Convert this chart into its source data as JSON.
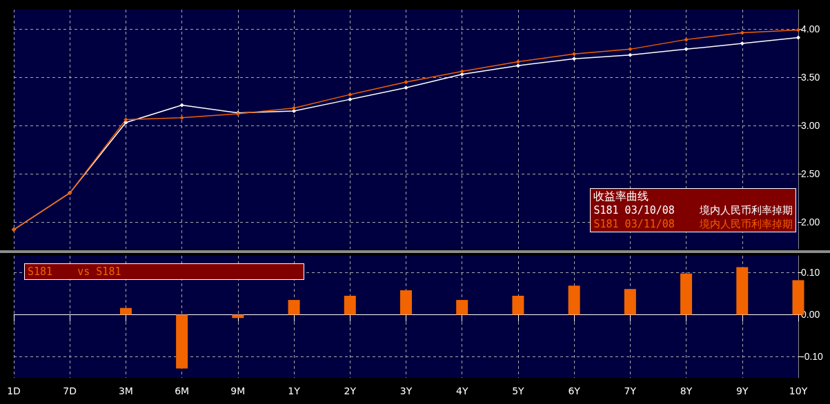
{
  "chart_data": [
    {
      "type": "line",
      "categories": [
        null,
        null,
        null,
        null,
        null,
        null,
        null,
        null,
        null,
        null,
        null,
        null,
        null,
        null,
        null
      ],
      "series": [
        {
          "name": "S181 03/10/08    境内人民币利率掉期",
          "color": "#ffffff",
          "values": [
            1.92,
            2.3,
            3.03,
            3.21,
            3.13,
            3.15,
            3.27,
            3.39,
            3.53,
            3.62,
            3.69,
            3.73,
            3.79,
            3.85,
            3.91
          ]
        },
        {
          "name": "S181 03/11/08    境内人民币利率掉期",
          "color": "#f06000",
          "values": [
            1.92,
            2.3,
            3.06,
            3.08,
            3.12,
            3.18,
            3.32,
            3.45,
            3.56,
            3.66,
            3.74,
            3.79,
            3.89,
            3.96,
            3.99
          ]
        }
      ],
      "ylim": [
        1.72,
        4.2
      ],
      "yticks": [
        {
          "value": 2,
          "label": "2.00"
        },
        {
          "value": 2.5,
          "label": "2.50"
        },
        {
          "value": 3,
          "label": "3.00"
        },
        {
          "value": 3.5,
          "label": "3.50"
        },
        {
          "value": 4,
          "label": "4.00"
        }
      ],
      "legend_title": "收益率曲线",
      "legend": "bottom right",
      "grid": true,
      "marker": "diamond",
      "tick_labels": "y"
    },
    {
      "type": "bar",
      "categories": [
        "1D",
        "7D",
        "3M",
        "6M",
        "9M",
        "1Y",
        "2Y",
        "3Y",
        "4Y",
        "5Y",
        "6Y",
        "7Y",
        "8Y",
        "9Y",
        "10Y"
      ],
      "series": [
        {
          "name": "S181    vs S181",
          "color": "#f26400",
          "values": [
            0,
            0,
            0.016,
            -0.128,
            -0.008,
            0.035,
            0.045,
            0.058,
            0.035,
            0.045,
            0.069,
            0.061,
            0.098,
            0.113,
            0.082
          ]
        }
      ],
      "ylim": [
        -0.15,
        0.14
      ],
      "yticks": [
        {
          "value": -0.1,
          "label": "-0.10"
        },
        {
          "value": 0,
          "label": "0.00"
        },
        {
          "value": 0.1,
          "label": "0.10"
        }
      ],
      "legend": "top left",
      "grid": true
    }
  ]
}
